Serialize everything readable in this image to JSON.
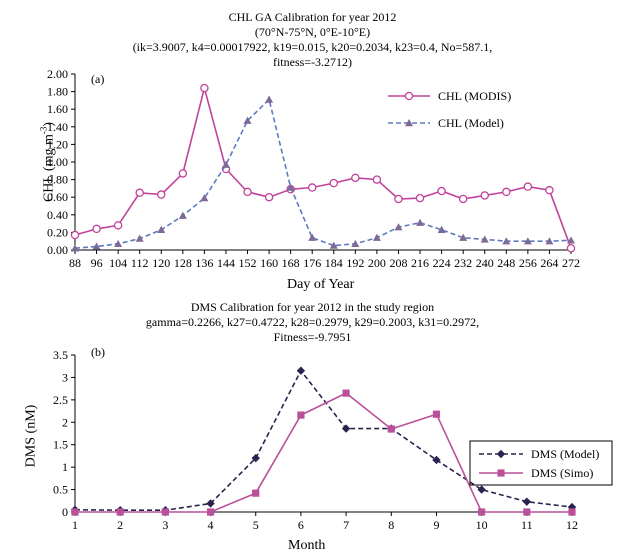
{
  "colors": {
    "modis": "#c2439b",
    "model_chl": "#5b7bbf",
    "model_marker": "#7d6a96",
    "dms_model": "#2a2350",
    "dms_simo": "#b9519a"
  },
  "chart_data": [
    {
      "id": "a",
      "type": "line",
      "panel_label": "(a)",
      "title_lines": [
        "CHL GA Calibration for year 2012",
        "(70°N-75°N, 0°E-10°E)",
        "(ik=3.9007, k4=0.00017922, k19=0.015, k20=0.2034, k23=0.4, No=587.1,",
        "fitness=-3.2712)"
      ],
      "xlabel": "Day of Year",
      "ylabel": "CHL (mg m",
      "ylabel_sup": "-3",
      "ylabel_end": ")",
      "xlim": [
        88,
        272
      ],
      "ylim": [
        0,
        2
      ],
      "x_ticks": [
        88,
        96,
        104,
        112,
        120,
        128,
        136,
        144,
        152,
        160,
        168,
        176,
        184,
        192,
        200,
        208,
        216,
        224,
        232,
        240,
        248,
        256,
        264,
        272
      ],
      "y_ticks": [
        "0.00",
        "0.20",
        "0.40",
        "0.60",
        "0.80",
        "1.00",
        "1.20",
        "1.40",
        "1.60",
        "1.80",
        "2.00"
      ],
      "legend_position": "top-right",
      "series": [
        {
          "name": "CHL (MODIS)",
          "style": "solid",
          "marker": "open-circle",
          "color_key": "modis",
          "x": [
            88,
            96,
            104,
            112,
            120,
            128,
            136,
            144,
            152,
            160,
            168,
            176,
            184,
            192,
            200,
            208,
            216,
            224,
            232,
            240,
            248,
            256,
            264,
            272
          ],
          "y": [
            0.17,
            0.24,
            0.28,
            0.65,
            0.63,
            0.87,
            1.84,
            0.92,
            0.66,
            0.6,
            0.69,
            0.71,
            0.76,
            0.82,
            0.8,
            0.58,
            0.59,
            0.67,
            0.58,
            0.62,
            0.66,
            0.72,
            0.68,
            0.02
          ]
        },
        {
          "name": "CHL (Model)",
          "style": "dashed",
          "marker": "triangle",
          "color_key": "model_chl",
          "x": [
            88,
            96,
            104,
            112,
            120,
            128,
            136,
            144,
            152,
            160,
            168,
            176,
            184,
            192,
            200,
            208,
            216,
            224,
            232,
            240,
            248,
            256,
            264,
            272
          ],
          "y": [
            0.02,
            0.04,
            0.07,
            0.13,
            0.23,
            0.39,
            0.59,
            0.97,
            1.47,
            1.71,
            0.71,
            0.14,
            0.05,
            0.07,
            0.14,
            0.26,
            0.31,
            0.23,
            0.14,
            0.12,
            0.1,
            0.1,
            0.1,
            0.11
          ]
        }
      ]
    },
    {
      "id": "b",
      "type": "line",
      "panel_label": "(b)",
      "title_lines": [
        "DMS Calibration for year 2012 in the study region",
        "gamma=0.2266, k27=0.4722, k28=0.2979, k29=0.2003, k31=0.2972,",
        "Fitness=-9.7951"
      ],
      "xlabel": "Month",
      "ylabel": "DMS (nM)",
      "xlim": [
        1,
        12
      ],
      "ylim": [
        0,
        3.5
      ],
      "x_ticks": [
        1,
        2,
        3,
        4,
        5,
        6,
        7,
        8,
        9,
        10,
        11,
        12
      ],
      "y_ticks": [
        "0",
        "0.5",
        "1",
        "1.5",
        "2",
        "2.5",
        "3",
        "3.5"
      ],
      "legend_position": "bottom-right",
      "series": [
        {
          "name": "DMS (Model)",
          "style": "dashed",
          "marker": "diamond",
          "color_key": "dms_model",
          "x": [
            1,
            2,
            3,
            4,
            5,
            6,
            7,
            8,
            9,
            10,
            11,
            12
          ],
          "y": [
            0.05,
            0.04,
            0.04,
            0.19,
            1.2,
            3.15,
            1.86,
            1.86,
            1.16,
            0.5,
            0.23,
            0.11
          ]
        },
        {
          "name": "DMS (Simo)",
          "style": "solid",
          "marker": "square",
          "color_key": "dms_simo",
          "x": [
            1,
            2,
            3,
            4,
            5,
            6,
            7,
            8,
            9,
            10,
            11,
            12
          ],
          "y": [
            0.0,
            0.0,
            0.0,
            0.0,
            0.42,
            2.16,
            2.65,
            1.85,
            2.18,
            0.0,
            0.0,
            0.0
          ]
        }
      ]
    }
  ]
}
